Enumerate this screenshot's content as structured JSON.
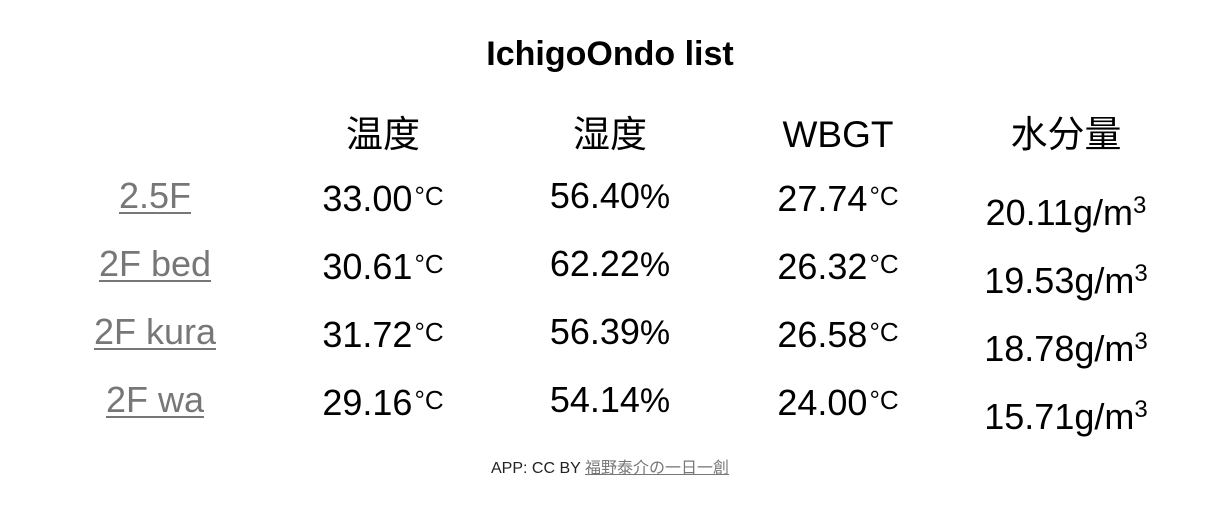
{
  "title": "IchigoOndo list",
  "headers": {
    "name": "",
    "temperature": "温度",
    "humidity": "湿度",
    "wbgt": "WBGT",
    "water": "水分量"
  },
  "units": {
    "temperature": "°C",
    "humidity": "%",
    "water_base": "g/m",
    "water_exp": "3"
  },
  "rows": [
    {
      "name": "2.5F",
      "temperature": "33.00",
      "humidity": "56.40",
      "wbgt": "27.74",
      "water": "20.11"
    },
    {
      "name": "2F bed",
      "temperature": "30.61",
      "humidity": "62.22",
      "wbgt": "26.32",
      "water": "19.53"
    },
    {
      "name": "2F kura",
      "temperature": "31.72",
      "humidity": "56.39",
      "wbgt": "26.58",
      "water": "18.78"
    },
    {
      "name": "2F wa",
      "temperature": "29.16",
      "humidity": "54.14",
      "wbgt": "24.00",
      "water": "15.71"
    }
  ],
  "footer": {
    "prefix": "APP: CC BY ",
    "author_link": "福野泰介の一日一創"
  },
  "colors": {
    "text": "#000000",
    "link": "#777777"
  }
}
